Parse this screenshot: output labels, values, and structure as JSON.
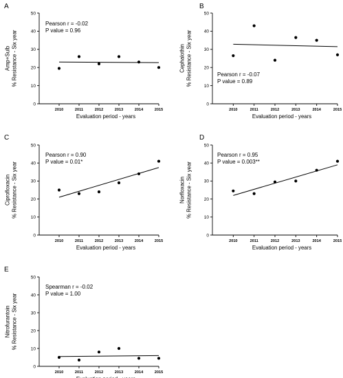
{
  "chart_data": [
    {
      "panel": "A",
      "type": "scatter",
      "drug_label": "Amp+Sulb",
      "ylabel": "% Resistance - Six year",
      "xlabel": "Evaluation period - years",
      "x": [
        2010,
        2011,
        2012,
        2013,
        2014,
        2015
      ],
      "values": [
        19.5,
        26,
        22,
        26,
        23,
        20
      ],
      "y_ticks": [
        0,
        10,
        20,
        30,
        40,
        50
      ],
      "ylim": [
        0,
        50
      ],
      "stat_line1": "Pearson r = -0.02",
      "stat_line2": "P value = 0.96",
      "fit": [
        23.0,
        22.7
      ]
    },
    {
      "panel": "B",
      "type": "scatter",
      "drug_label": "Cephalothin",
      "ylabel": "% Resistance - Six year",
      "xlabel": "Evaluation period - years",
      "x": [
        2010,
        2011,
        2012,
        2013,
        2014,
        2015
      ],
      "values": [
        26.5,
        43,
        24,
        36.5,
        35,
        27
      ],
      "y_ticks": [
        0,
        10,
        20,
        30,
        40,
        50
      ],
      "ylim": [
        0,
        50
      ],
      "stat_line1": "Pearson r = -0.07",
      "stat_line2": "P value = 0.89",
      "fit": [
        32.8,
        31.5
      ]
    },
    {
      "panel": "C",
      "type": "scatter",
      "drug_label": "Ciprofloxacin",
      "ylabel": "% Resistance - Six year",
      "xlabel": "Evaluation period - years",
      "x": [
        2010,
        2011,
        2012,
        2013,
        2014,
        2015
      ],
      "values": [
        25,
        23,
        24,
        29,
        34,
        41
      ],
      "y_ticks": [
        0,
        10,
        20,
        30,
        40,
        50
      ],
      "ylim": [
        0,
        50
      ],
      "stat_line1": "Pearson r = 0.90",
      "stat_line2": "P value = 0.01*",
      "fit": [
        21.0,
        37.5
      ]
    },
    {
      "panel": "D",
      "type": "scatter",
      "drug_label": "Norfloxacin",
      "ylabel": "% Resistance - Six year",
      "xlabel": "Evaluation period - years",
      "x": [
        2010,
        2011,
        2012,
        2013,
        2014,
        2015
      ],
      "values": [
        24.5,
        23,
        29.5,
        30,
        36,
        41
      ],
      "y_ticks": [
        0,
        10,
        20,
        30,
        40,
        50
      ],
      "ylim": [
        0,
        50
      ],
      "stat_line1": "Pearson r = 0.95",
      "stat_line2": "P value = 0.003**",
      "fit": [
        22.0,
        39.0
      ]
    },
    {
      "panel": "E",
      "type": "scatter",
      "drug_label": "Nitrofurantoin",
      "ylabel": "% Resistance - Six year",
      "xlabel": "Evaluation period - years",
      "x": [
        2010,
        2011,
        2012,
        2013,
        2014,
        2015
      ],
      "values": [
        5,
        3.5,
        8,
        10,
        4.5,
        4.5
      ],
      "y_ticks": [
        0,
        10,
        20,
        30,
        40,
        50
      ],
      "ylim": [
        0,
        50
      ],
      "stat_line1": "Spearman r = -0.02",
      "stat_line2": "P value = 1.00",
      "fit": [
        5.5,
        6.0
      ]
    }
  ]
}
